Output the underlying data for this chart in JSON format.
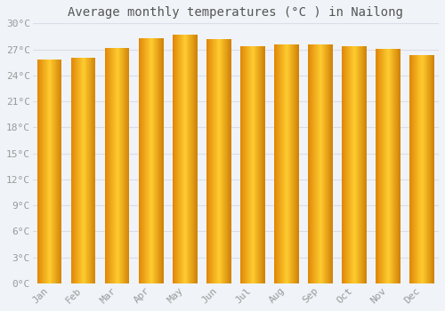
{
  "title": "Average monthly temperatures (°C ) in Nailong",
  "months": [
    "Jan",
    "Feb",
    "Mar",
    "Apr",
    "May",
    "Jun",
    "Jul",
    "Aug",
    "Sep",
    "Oct",
    "Nov",
    "Dec"
  ],
  "values": [
    25.8,
    26.0,
    27.2,
    28.3,
    28.7,
    28.2,
    27.4,
    27.6,
    27.6,
    27.4,
    27.1,
    26.3
  ],
  "bar_color_center": "#FFBE2E",
  "bar_color_edge_left": "#E8920A",
  "bar_color_edge_right": "#D4810A",
  "bar_color_top": "#E89010",
  "background_color": "#F0F4F8",
  "plot_bg_color": "#F0F4F8",
  "grid_color": "#DCDCE8",
  "text_color": "#999999",
  "title_color": "#555555",
  "ylim": [
    0,
    30
  ],
  "ytick_step": 3,
  "title_fontsize": 10,
  "tick_fontsize": 8,
  "font_family": "monospace"
}
